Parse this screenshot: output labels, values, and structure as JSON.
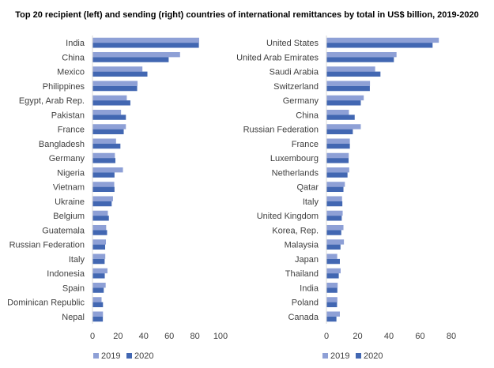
{
  "title": "Top 20 recipient (left) and  sending (right) countries of international remittances by total in US$ billion, 2019-2020",
  "colors": {
    "2019": "#8ea0d6",
    "2020": "#4267b2",
    "axis": "#d9d9d9"
  },
  "chart_data": [
    {
      "type": "bar",
      "orientation": "horizontal",
      "panel": "left",
      "categories": [
        "India",
        "China",
        "Mexico",
        "Philippines",
        "Egypt, Arab Rep.",
        "Pakistan",
        "France",
        "Bangladesh",
        "Germany",
        "Nigeria",
        "Vietnam",
        "Ukraine",
        "Belgium",
        "Guatemala",
        "Russian Federation",
        "Italy",
        "Indonesia",
        "Spain",
        "Dominican Republic",
        "Nepal"
      ],
      "series": [
        {
          "name": "2019",
          "values": [
            83.3,
            68.4,
            39.0,
            35.2,
            26.8,
            22.3,
            26.1,
            18.4,
            17.5,
            23.8,
            17.0,
            16.0,
            12.0,
            10.7,
            10.5,
            10.0,
            11.7,
            10.3,
            7.1,
            8.2
          ]
        },
        {
          "name": "2020",
          "values": [
            83.1,
            59.5,
            42.9,
            34.9,
            29.6,
            26.1,
            24.4,
            21.8,
            17.9,
            17.2,
            17.2,
            15.0,
            12.8,
            11.4,
            9.9,
            9.5,
            9.6,
            8.8,
            8.2,
            8.1
          ]
        }
      ],
      "xlim": [
        0,
        100
      ],
      "xticks": [
        0,
        20,
        40,
        60,
        80,
        100
      ],
      "grid": false,
      "legend": "bottom-left"
    },
    {
      "type": "bar",
      "orientation": "horizontal",
      "panel": "right",
      "categories": [
        "United States",
        "United Arab Emirates",
        "Saudi Arabia",
        "Switzerland",
        "Germany",
        "China",
        "Russian Federation",
        "France",
        "Luxembourg",
        "Netherlands",
        "Qatar",
        "Italy",
        "United Kingdom",
        "Korea, Rep.",
        "Malaysia",
        "Japan",
        "Thailand",
        "India",
        "Poland",
        "Canada"
      ],
      "series": [
        {
          "name": "2019",
          "values": [
            72.0,
            44.9,
            31.2,
            27.9,
            23.9,
            14.4,
            22.0,
            15.0,
            14.3,
            14.6,
            11.8,
            10.0,
            10.4,
            10.9,
            11.2,
            6.9,
            9.1,
            7.2,
            7.0,
            8.6
          ]
        },
        {
          "name": "2020",
          "values": [
            68.0,
            43.2,
            34.6,
            27.8,
            22.0,
            18.1,
            16.9,
            15.0,
            14.2,
            13.5,
            10.9,
            10.2,
            9.8,
            9.5,
            9.0,
            8.6,
            7.9,
            7.0,
            6.8,
            6.4
          ]
        }
      ],
      "xlim": [
        0,
        80
      ],
      "xticks": [
        0,
        20,
        40,
        60,
        80
      ],
      "grid": false,
      "legend": "bottom-left"
    }
  ]
}
